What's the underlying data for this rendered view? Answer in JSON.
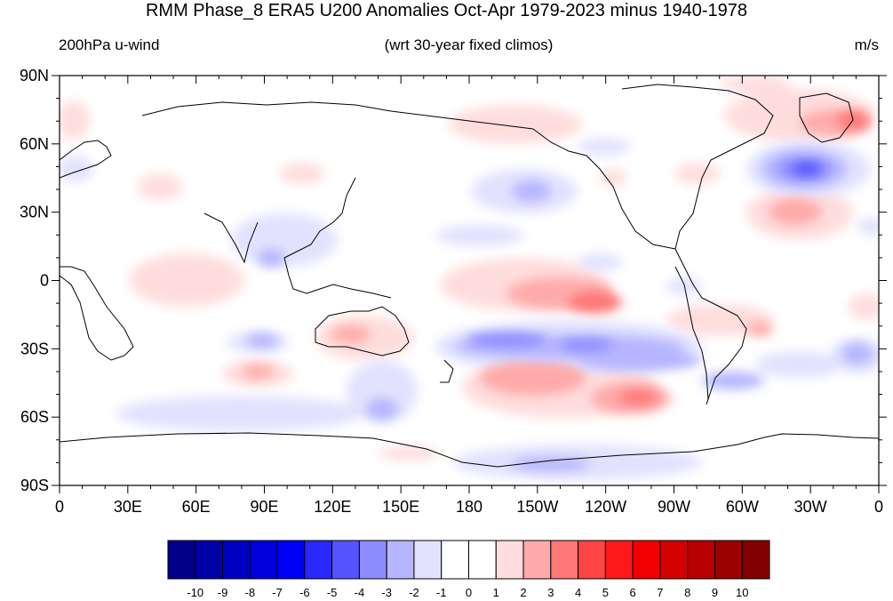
{
  "title": "RMM Phase_8 ERA5 U200 Anomalies Oct-Apr 1979-2023 minus 1940-1978",
  "subtitle_left": "200hPa u-wind",
  "subtitle_center": "(wrt 30-year fixed climos)",
  "subtitle_right": "m/s",
  "lat_labels": [
    "90N",
    "60N",
    "30N",
    "0",
    "30S",
    "60S",
    "90S"
  ],
  "lon_labels": [
    "0",
    "30E",
    "60E",
    "90E",
    "120E",
    "150E",
    "180",
    "150W",
    "120W",
    "90W",
    "60W",
    "30W",
    "0"
  ],
  "colorbar": {
    "labels": [
      "-10",
      "-9",
      "-8",
      "-7",
      "-6",
      "-5",
      "-4",
      "-3",
      "-2",
      "-1",
      "0",
      "1",
      "2",
      "3",
      "4",
      "5",
      "6",
      "7",
      "8",
      "9",
      "10"
    ],
    "colors": [
      "#00008b",
      "#0000a6",
      "#0000c1",
      "#0000dc",
      "#0000f7",
      "#2828ff",
      "#5555ff",
      "#8d8dff",
      "#b6b6ff",
      "#e2e2ff",
      "#ffffff",
      "#ffffff",
      "#ffdddd",
      "#ffaaaa",
      "#ff7777",
      "#ff4444",
      "#ff1a1a",
      "#f10000",
      "#d40000",
      "#b70000",
      "#9b0000",
      "#820000"
    ]
  },
  "anomaly_features": [
    {
      "label": "North Atlantic negative",
      "lon": -28,
      "lat": 47,
      "value": -5
    },
    {
      "label": "North Atlantic positive",
      "lon": -25,
      "lat": 27,
      "value": 3
    },
    {
      "label": "Greenland positive",
      "lon": -22,
      "lat": 67,
      "value": 3
    },
    {
      "label": "North Pacific negative",
      "lon": 175,
      "lat": 38,
      "value": -3
    },
    {
      "label": "Eastern Pacific positive",
      "lon": -128,
      "lat": -10,
      "value": 4
    },
    {
      "label": "South Pacific negative band",
      "lon": -140,
      "lat": -27,
      "value": -4
    },
    {
      "label": "South Pacific positive",
      "lon": -150,
      "lat": -42,
      "value": 3
    },
    {
      "label": "Southeast Pacific positive",
      "lon": -110,
      "lat": -52,
      "value": 4
    },
    {
      "label": "Australia positive",
      "lon": 125,
      "lat": -23,
      "value": 3
    },
    {
      "label": "Indian Ocean negative",
      "lon": 85,
      "lat": -27,
      "value": -3
    },
    {
      "label": "Southern Indian positive",
      "lon": 85,
      "lat": -40,
      "value": 3
    },
    {
      "label": "Southern Ocean negative",
      "lon": 140,
      "lat": -57,
      "value": -3
    },
    {
      "label": "South Atlantic negative",
      "lon": -20,
      "lat": -33,
      "value": -3
    },
    {
      "label": "Antarctic negative",
      "lon": -150,
      "lat": -80,
      "value": -2
    }
  ]
}
